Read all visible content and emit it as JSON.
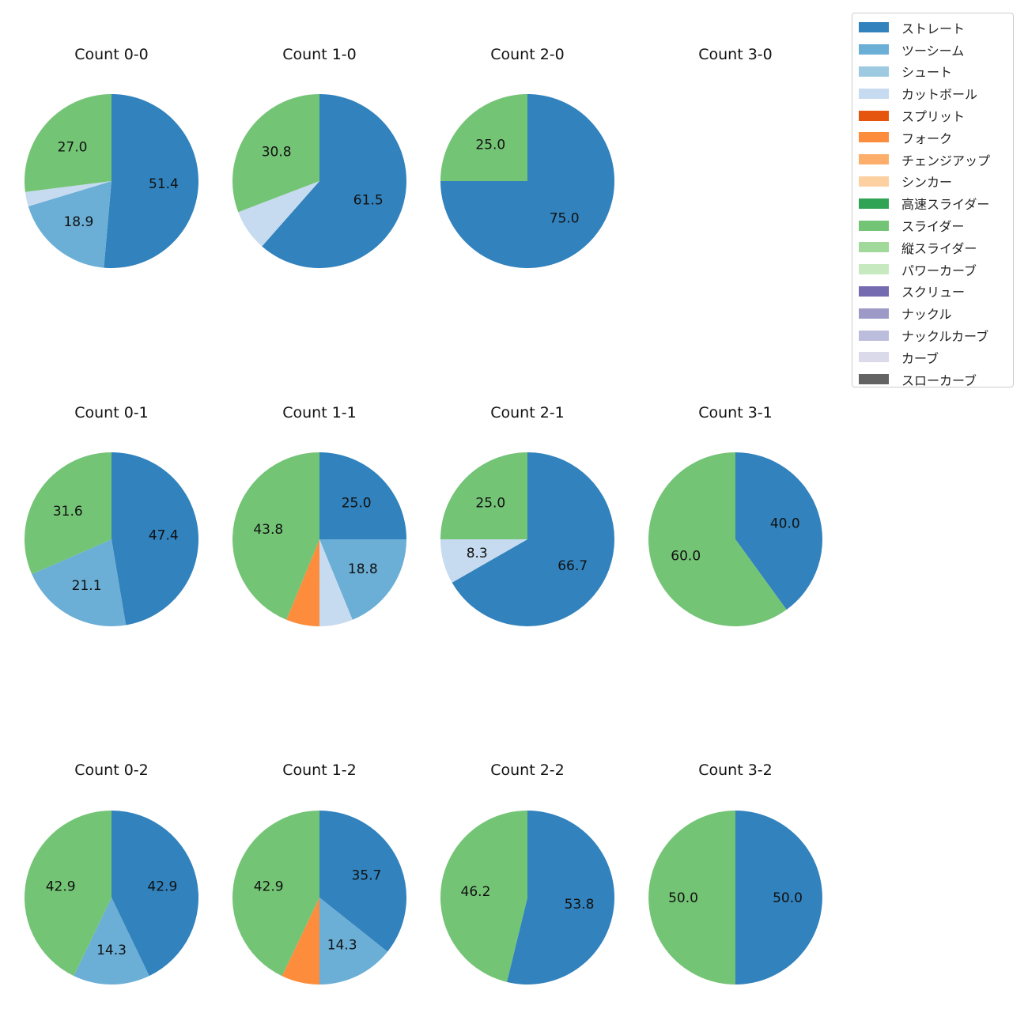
{
  "chart_data": {
    "type": "pie",
    "legend_placement": "top-right",
    "categories": [
      "ストレート",
      "ツーシーム",
      "シュート",
      "カットボール",
      "スプリット",
      "フォーク",
      "チェンジアップ",
      "シンカー",
      "高速スライダー",
      "スライダー",
      "縦スライダー",
      "パワーカーブ",
      "スクリュー",
      "ナックル",
      "ナックルカーブ",
      "カーブ",
      "スローカーブ"
    ],
    "colors": [
      "#3182bd",
      "#6baed6",
      "#9ecae1",
      "#c6dbef",
      "#e6550d",
      "#fd8d3c",
      "#fdae6b",
      "#fdd0a2",
      "#31a354",
      "#74c476",
      "#a1d99b",
      "#c7e9c0",
      "#756bb1",
      "#9e9ac8",
      "#bcbddc",
      "#dadaeb",
      "#636363"
    ],
    "pies": [
      {
        "title": "Count 0-0",
        "row": 0,
        "col": 0,
        "values": {
          "ストレート": 51.4,
          "ツーシーム": 18.9,
          "カットボール": 2.7,
          "スライダー": 27.0
        }
      },
      {
        "title": "Count 1-0",
        "row": 0,
        "col": 1,
        "values": {
          "ストレート": 61.5,
          "カットボール": 7.7,
          "スライダー": 30.8
        }
      },
      {
        "title": "Count 2-0",
        "row": 0,
        "col": 2,
        "values": {
          "ストレート": 75.0,
          "スライダー": 25.0
        }
      },
      {
        "title": "Count 3-0",
        "row": 0,
        "col": 3,
        "values": {}
      },
      {
        "title": "Count 0-1",
        "row": 1,
        "col": 0,
        "values": {
          "ストレート": 47.4,
          "ツーシーム": 21.1,
          "スライダー": 31.6
        }
      },
      {
        "title": "Count 1-1",
        "row": 1,
        "col": 1,
        "values": {
          "ストレート": 25.0,
          "ツーシーム": 18.8,
          "カットボール": 6.2,
          "フォーク": 6.2,
          "スライダー": 43.8
        }
      },
      {
        "title": "Count 2-1",
        "row": 1,
        "col": 2,
        "values": {
          "ストレート": 66.7,
          "カットボール": 8.3,
          "スライダー": 25.0
        }
      },
      {
        "title": "Count 3-1",
        "row": 1,
        "col": 3,
        "values": {
          "ストレート": 40.0,
          "スライダー": 60.0
        }
      },
      {
        "title": "Count 0-2",
        "row": 2,
        "col": 0,
        "values": {
          "ストレート": 42.9,
          "ツーシーム": 14.3,
          "スライダー": 42.9
        }
      },
      {
        "title": "Count 1-2",
        "row": 2,
        "col": 1,
        "values": {
          "ストレート": 35.7,
          "ツーシーム": 14.3,
          "フォーク": 7.1,
          "スライダー": 42.9
        }
      },
      {
        "title": "Count 2-2",
        "row": 2,
        "col": 2,
        "values": {
          "ストレート": 53.8,
          "スライダー": 46.2
        }
      },
      {
        "title": "Count 3-2",
        "row": 2,
        "col": 3,
        "values": {
          "ストレート": 50.0,
          "スライダー": 50.0
        }
      }
    ]
  }
}
